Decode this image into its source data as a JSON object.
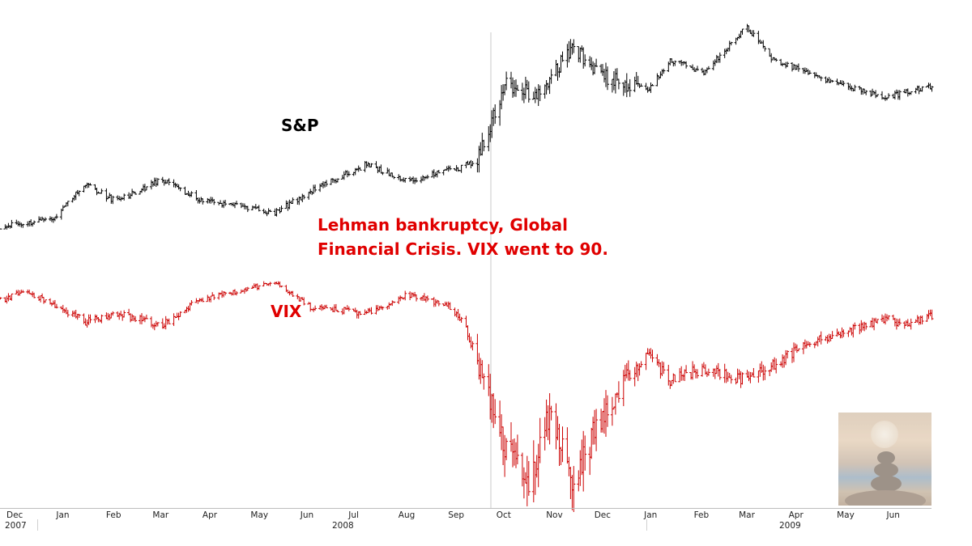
{
  "chart_data": {
    "type": "line",
    "style": "ohlc-bars",
    "series": [
      {
        "name": "S&P",
        "color": "#000000",
        "x": [
          "2007-11-30",
          "2007-12-15",
          "2008-01-02",
          "2008-01-22",
          "2008-02-10",
          "2008-03-10",
          "2008-04-01",
          "2008-05-19",
          "2008-06-10",
          "2008-07-15",
          "2008-08-10",
          "2008-09-05",
          "2008-09-10",
          "2008-09-22",
          "2008-10-10",
          "2008-10-28",
          "2008-11-20",
          "2008-12-10",
          "2009-01-06",
          "2009-01-20",
          "2009-02-10",
          "2009-03-09",
          "2009-03-25",
          "2009-04-15",
          "2009-05-10",
          "2009-06-05",
          "2009-06-15",
          "2009-06-29"
        ],
        "values": [
          1481,
          1470,
          1447,
          1310,
          1380,
          1290,
          1370,
          1425,
          1340,
          1230,
          1300,
          1245,
          1250,
          1210,
          900,
          960,
          760,
          880,
          930,
          810,
          860,
          676,
          810,
          860,
          920,
          960,
          940,
          920
        ]
      },
      {
        "name": "VIX",
        "color": "#cc0000",
        "x": [
          "2007-11-30",
          "2007-12-15",
          "2008-01-02",
          "2008-01-22",
          "2008-02-10",
          "2008-03-10",
          "2008-04-01",
          "2008-05-19",
          "2008-06-10",
          "2008-07-15",
          "2008-08-10",
          "2008-09-05",
          "2008-09-15",
          "2008-10-10",
          "2008-10-24",
          "2008-11-07",
          "2008-11-20",
          "2008-12-10",
          "2009-01-06",
          "2009-01-20",
          "2009-02-10",
          "2009-03-09",
          "2009-03-25",
          "2009-04-15",
          "2009-05-10",
          "2009-06-05",
          "2009-06-15",
          "2009-06-29"
        ],
        "values": [
          22,
          19,
          23,
          29,
          26,
          30,
          22,
          16,
          24,
          26,
          20,
          24,
          31,
          70,
          80,
          56,
          81,
          57,
          40,
          48,
          44,
          48,
          43,
          36,
          32,
          28,
          30,
          27
        ]
      }
    ],
    "xlim": [
      "2007-11-30",
      "2009-07-02"
    ],
    "x_ticks": [
      "Dec",
      "Jan",
      "Feb",
      "Mar",
      "Apr",
      "May",
      "Jun",
      "Jul",
      "Aug",
      "Sep",
      "Oct",
      "Nov",
      "Dec",
      "Jan",
      "Feb",
      "Mar",
      "Apr",
      "May",
      "Jun"
    ],
    "x_years": [
      "2007",
      "2008",
      "2009"
    ],
    "series_labels": [
      "S&P",
      "VIX"
    ],
    "annotation": [
      "Lehman bankruptcy, Global",
      "Financial Crisis. VIX went to 90."
    ],
    "grid": false,
    "legend": "none"
  }
}
